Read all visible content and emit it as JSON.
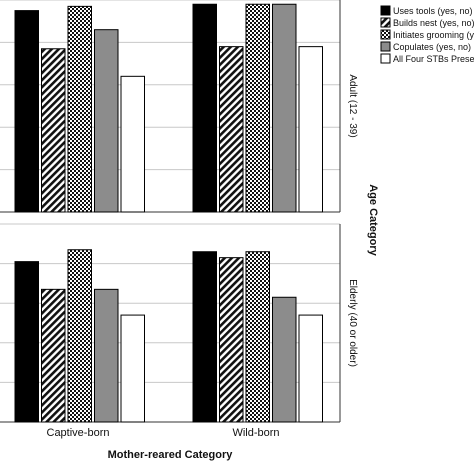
{
  "chart_data": {
    "type": "bar",
    "x_title": "Mother-reared Category",
    "row_title": "Age Category",
    "categories": [
      "Captive-born",
      "Wild-born"
    ],
    "panels": [
      {
        "label": "Adult (12 - 39)",
        "values": {
          "Captive-born": [
            95,
            77,
            97,
            86,
            64
          ],
          "Wild-born": [
            98,
            78,
            98,
            98,
            78
          ]
        }
      },
      {
        "label": "Elderly (40 or older)",
        "values": {
          "Captive-born": [
            81,
            67,
            87,
            67,
            54
          ],
          "Wild-born": [
            86,
            83,
            86,
            63,
            54
          ]
        }
      }
    ],
    "series": [
      {
        "name": "Uses tools (yes, no)",
        "fill": "solid-black"
      },
      {
        "name": "Builds nest (yes, no)",
        "fill": "diagonal-hatch"
      },
      {
        "name": "Initiates grooming (yes, no)",
        "fill": "checker"
      },
      {
        "name": "Copulates (yes, no)",
        "fill": "solid-gray"
      },
      {
        "name": "All Four STBs Present",
        "fill": "white"
      }
    ],
    "ylim": [
      0,
      100
    ],
    "grid": true,
    "legend_position": "top-right"
  }
}
